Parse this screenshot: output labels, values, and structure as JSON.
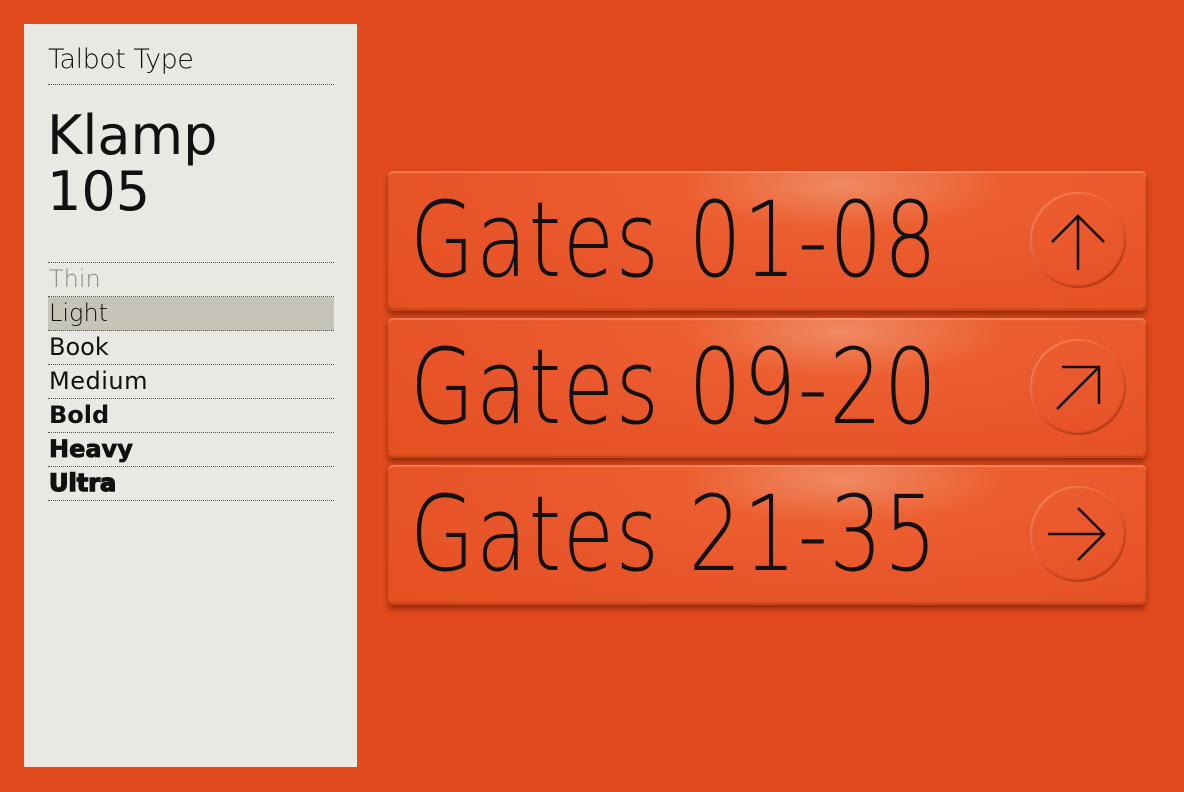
{
  "panel": {
    "brand": "Talbot Type",
    "title_line1": "Klamp",
    "title_line2": "105",
    "weights": [
      "Thin",
      "Light",
      "Book",
      "Medium",
      "Bold",
      "Heavy",
      "Ultra"
    ],
    "selected_weight": "Light"
  },
  "signs": [
    {
      "label": "Gates 01-08",
      "icon": "arrow-up-icon"
    },
    {
      "label": "Gates 09-20",
      "icon": "arrow-up-right-icon"
    },
    {
      "label": "Gates 21-35",
      "icon": "arrow-right-icon"
    }
  ],
  "colors": {
    "background": "#e04a1c",
    "panel": "#e9e8e2",
    "sign": "#e8552a",
    "highlight": "#c6c3b9"
  }
}
